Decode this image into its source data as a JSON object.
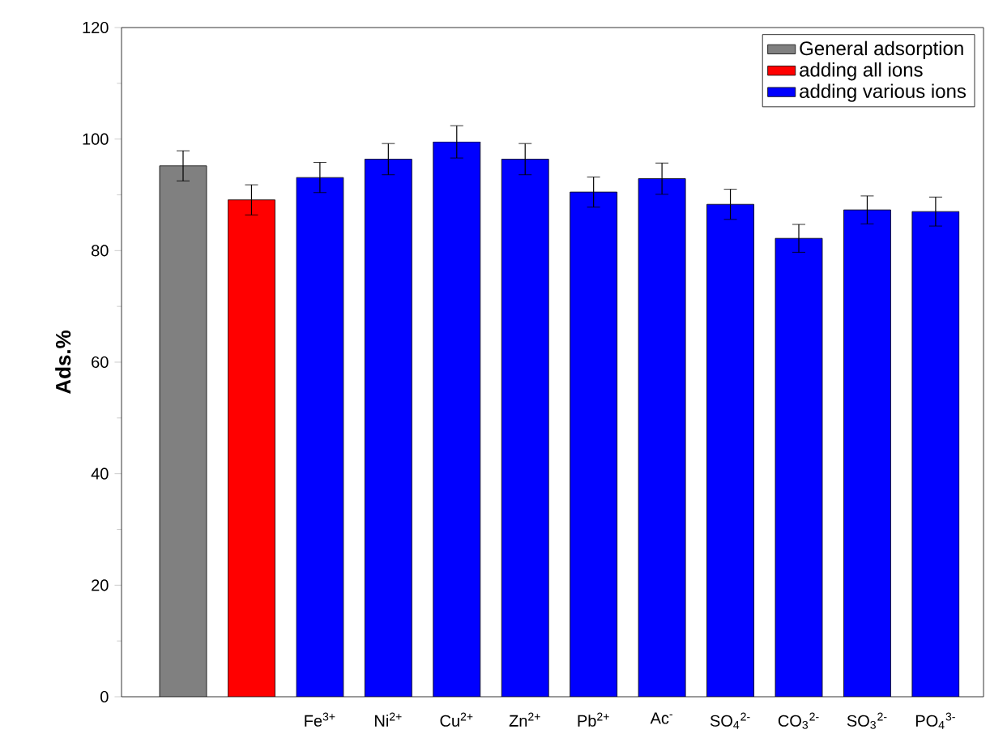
{
  "chart_data": {
    "type": "bar",
    "ylabel": "Ads.%",
    "categories": [
      null,
      null,
      "Fe$^{3+}$",
      "Ni$^{2+}$",
      "Cu$^{2+}$",
      "Zn$^{2+}$",
      "Pb$^{2+}$",
      "Ac$^{-}$",
      "SO$_{4}$$^{2-}$",
      "CO$_{3}$$^{2-}$",
      "SO$_{3}$$^{2-}$",
      "PO$_{4}$$^{3-}$"
    ],
    "series": [
      {
        "name": "General adsorption",
        "color": "#808080",
        "values": [
          95.2,
          null,
          null,
          null,
          null,
          null,
          null,
          null,
          null,
          null,
          null,
          null
        ],
        "errors": [
          2.7,
          null,
          null,
          null,
          null,
          null,
          null,
          null,
          null,
          null,
          null,
          null
        ]
      },
      {
        "name": "adding all ions",
        "color": "#ff0000",
        "values": [
          null,
          89.1,
          null,
          null,
          null,
          null,
          null,
          null,
          null,
          null,
          null,
          null
        ],
        "errors": [
          null,
          2.7,
          null,
          null,
          null,
          null,
          null,
          null,
          null,
          null,
          null,
          null
        ]
      },
      {
        "name": "adding various ions",
        "color": "#0000ff",
        "values": [
          null,
          null,
          93.1,
          96.4,
          99.5,
          96.4,
          90.5,
          92.9,
          88.3,
          82.2,
          87.3,
          87.0
        ],
        "errors": [
          null,
          null,
          2.7,
          2.8,
          2.9,
          2.8,
          2.7,
          2.8,
          2.7,
          2.5,
          2.5,
          2.6
        ]
      }
    ],
    "ylim": [
      0,
      120
    ],
    "yticks": [
      0,
      20,
      40,
      60,
      80,
      100,
      120
    ],
    "legend": "top right"
  }
}
